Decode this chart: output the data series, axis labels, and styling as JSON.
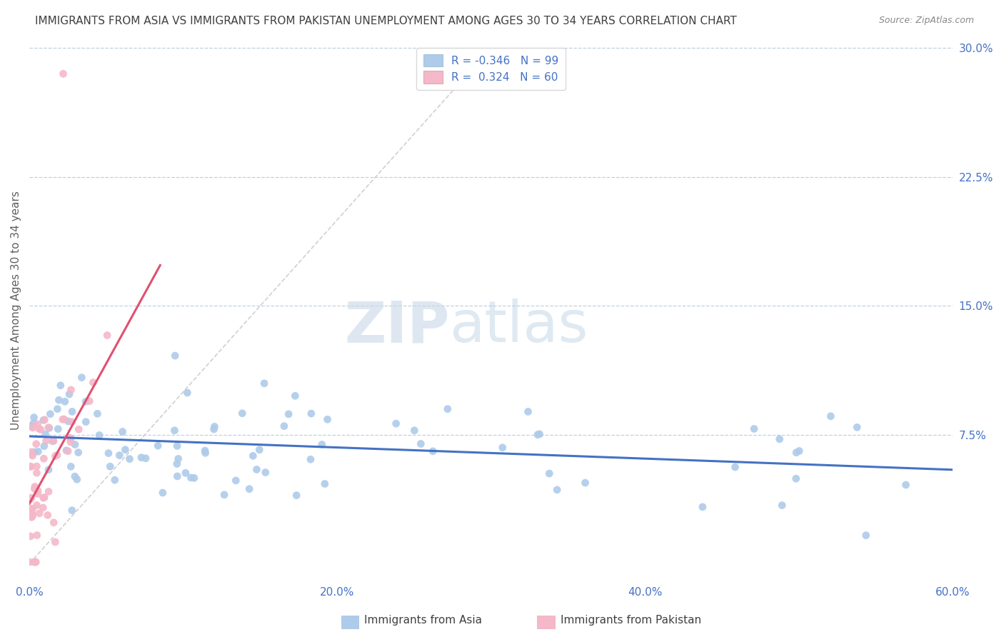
{
  "title": "IMMIGRANTS FROM ASIA VS IMMIGRANTS FROM PAKISTAN UNEMPLOYMENT AMONG AGES 30 TO 34 YEARS CORRELATION CHART",
  "source": "Source: ZipAtlas.com",
  "ylabel": "Unemployment Among Ages 30 to 34 years",
  "x_tick_labels": [
    "0.0%",
    "20.0%",
    "40.0%",
    "60.0%"
  ],
  "x_tick_vals": [
    0.0,
    0.2,
    0.4,
    0.6
  ],
  "y_tick_labels": [
    "7.5%",
    "15.0%",
    "22.5%",
    "30.0%"
  ],
  "y_tick_vals": [
    0.075,
    0.15,
    0.225,
    0.3
  ],
  "xlim": [
    0.0,
    0.6
  ],
  "ylim": [
    -0.01,
    0.305
  ],
  "ylim_display": [
    0.0,
    0.3
  ],
  "watermark_zip": "ZIP",
  "watermark_atlas": "atlas",
  "legend_R_asia": "-0.346",
  "legend_N_asia": "99",
  "legend_R_pak": "0.324",
  "legend_N_pak": "60",
  "asia_color": "#aecbea",
  "pakistan_color": "#f4b8c8",
  "asia_line_color": "#4472c4",
  "pakistan_line_color": "#e05070",
  "diag_color": "#d0d0d0",
  "background_color": "#ffffff",
  "grid_color": "#c0d0e0",
  "title_color": "#404040",
  "tick_label_color": "#4472c4",
  "title_fontsize": 11,
  "source_fontsize": 9,
  "legend_label_asia": "Immigrants from Asia",
  "legend_label_pak": "Immigrants from Pakistan"
}
